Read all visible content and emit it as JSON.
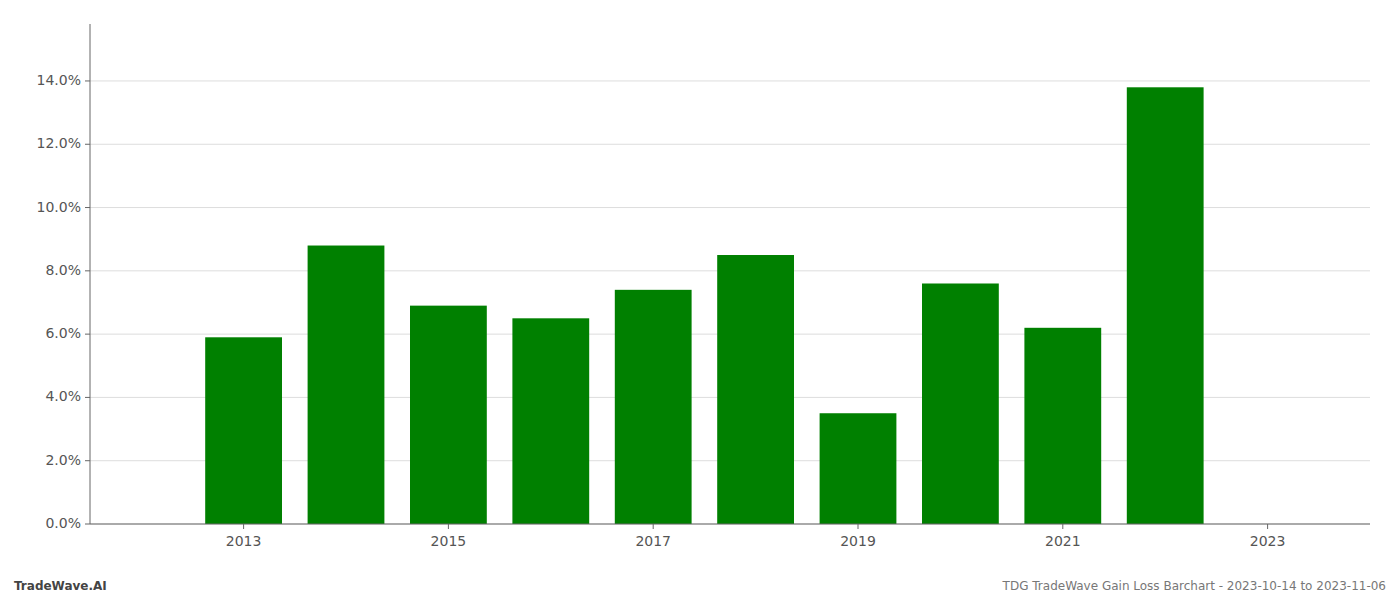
{
  "chart_data": {
    "type": "bar",
    "x": [
      2013,
      2014,
      2015,
      2016,
      2017,
      2018,
      2019,
      2020,
      2021,
      2022
    ],
    "values": [
      0.059,
      0.088,
      0.069,
      0.065,
      0.074,
      0.085,
      0.035,
      0.076,
      0.062,
      0.138
    ],
    "color": "#008000",
    "xlim": [
      2011.5,
      2024.0
    ],
    "xticks": [
      2013,
      2015,
      2017,
      2019,
      2021,
      2023
    ],
    "ylim": [
      0,
      0.158
    ],
    "yticks": [
      {
        "value": 0.0,
        "label": "0.0%"
      },
      {
        "value": 0.02,
        "label": "2.0%"
      },
      {
        "value": 0.04,
        "label": "4.0%"
      },
      {
        "value": 0.06,
        "label": "6.0%"
      },
      {
        "value": 0.08,
        "label": "8.0%"
      },
      {
        "value": 0.1,
        "label": "10.0%"
      },
      {
        "value": 0.12,
        "label": "12.0%"
      },
      {
        "value": 0.14,
        "label": "14.0%"
      }
    ],
    "grid": true,
    "annotations": [
      "TradeWave.AI",
      "TDG TradeWave Gain Loss Barchart - 2023-10-14 to 2023-11-06"
    ]
  }
}
